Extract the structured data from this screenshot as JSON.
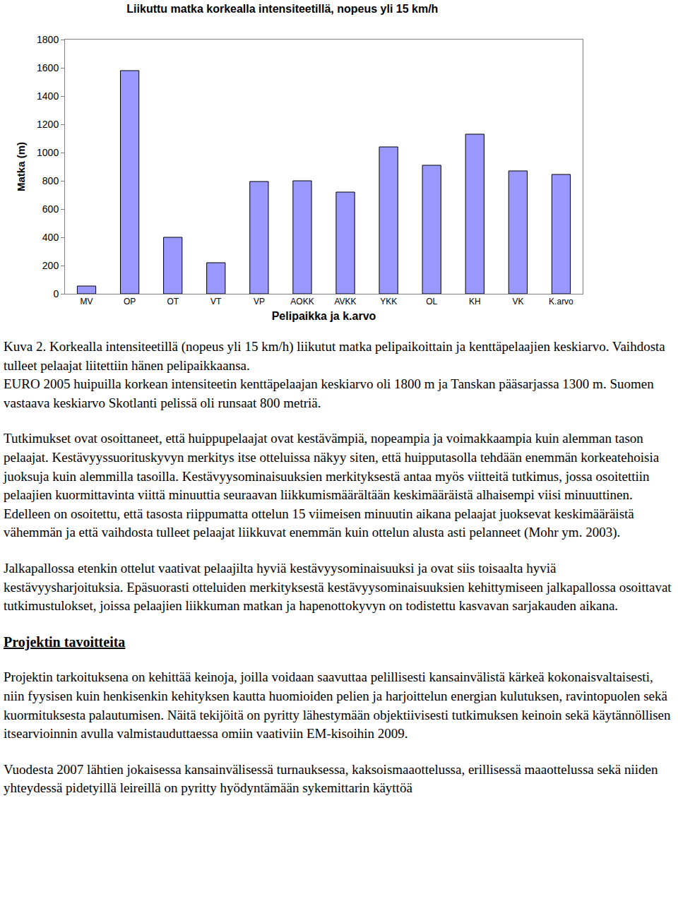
{
  "chart_data": {
    "type": "bar",
    "title": "Liikuttu matka korkealla intensiteetillä, nopeus yli 15 km/h",
    "x_label": "Pelipaikka ja k.arvo",
    "y_label": "Matka (m)",
    "categories": [
      "MV",
      "OP",
      "OT",
      "VT",
      "VP",
      "AOKK",
      "AVKK",
      "YKK",
      "OL",
      "KH",
      "VK",
      "K.arvo"
    ],
    "values": [
      55,
      1580,
      400,
      220,
      795,
      800,
      720,
      1040,
      910,
      1130,
      870,
      845
    ],
    "color": "#9999ff",
    "ylim": [
      0,
      1800
    ],
    "yticks": [
      0,
      200,
      400,
      600,
      800,
      1000,
      1200,
      1400,
      1600,
      1800
    ],
    "grid": false
  },
  "document": {
    "caption": "Kuva 2. Korkealla intensiteetillä (nopeus yli 15 km/h) liikutut matka pelipaikoittain ja kenttäpelaajien keskiarvo. Vaihdosta tulleet pelaajat liitettiin hänen pelipaikkaansa.",
    "paragraphs": [
      "EURO 2005 huipuilla korkean intensiteetin kenttäpelaajan keskiarvo oli 1800 m ja Tanskan pääsarjassa 1300 m. Suomen vastaava keskiarvo Skotlanti pelissä oli runsaat 800 metriä.",
      "Tutkimukset ovat osoittaneet, että huippupelaajat ovat kestävämpiä, nopeampia ja voimakkaampia kuin alemman tason pelaajat. Kestävyyssuorituskyvyn merkitys itse otteluissa näkyy siten, että huipputasolla tehdään enemmän korkeatehoisia juoksuja kuin alemmilla tasoilla. Kestävyysominaisuuksien merkityksestä antaa myös viitteitä tutkimus, jossa osoitettiin pelaajien kuormittavinta viittä minuuttia seuraavan liikkumismäärältään keskimääräistä alhaisempi viisi minuuttinen. Edelleen on osoitettu, että tasosta riippumatta ottelun 15 viimeisen minuutin aikana pelaajat juoksevat keskimääräistä vähemmän ja että vaihdosta tulleet pelaajat liikkuvat enemmän kuin ottelun alusta asti pelanneet (Mohr ym. 2003).",
      "Jalkapallossa etenkin ottelut vaativat pelaajilta hyviä kestävyysominaisuuksi ja ovat siis toisaalta hyviä kestävyysharjoituksia. Epäsuorasti otteluiden merkityksestä kestävyysominaisuuksien kehittymiseen jalkapallossa osoittavat tutkimustulokset, joissa pelaajien liikkuman matkan ja hapenottokyvyn on todistettu kasvavan sarjakauden aikana."
    ],
    "section": {
      "heading": "Projektin tavoitteita",
      "paragraphs": [
        "Projektin tarkoituksena on kehittää keinoja, joilla voidaan saavuttaa pelillisesti kansainvälistä kärkeä kokonaisvaltaisesti, niin fyysisen kuin henkisenkin kehityksen kautta huomioiden pelien ja harjoittelun energian kulutuksen, ravintopuolen sekä kuormituksesta palautumisen. Näitä tekijöitä on pyritty lähestymään objektiivisesti tutkimuksen keinoin sekä käytännöllisen itsearvioinnin avulla valmistauduttaessa omiin vaativiin EM-kisoihin 2009.",
        "Vuodesta 2007 lähtien jokaisessa kansainvälisessä turnauksessa, kaksoismaaottelussa, erillisessä maaottelussa sekä niiden yhteydessä pidetyillä leireillä on pyritty hyödyntämään sykemittarin käyttöä"
      ]
    }
  }
}
